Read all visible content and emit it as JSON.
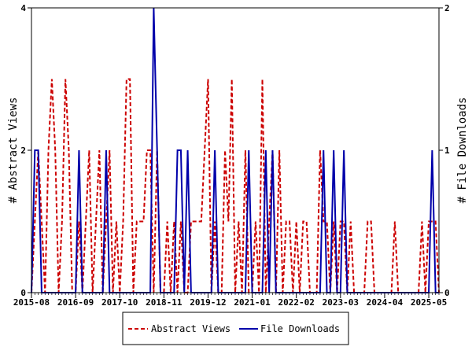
{
  "chart_data": {
    "type": "line",
    "title": "",
    "ylabel_left": "# Abstract Views",
    "ylabel_right": "# File Downloads",
    "x_tick_labels": [
      "2015-08",
      "2016-09",
      "2017-10",
      "2018-11",
      "2019-12",
      "2021-01",
      "2022-02",
      "2023-03",
      "2024-04",
      "2025-05"
    ],
    "x_range": [
      "2015-08",
      "2025-08"
    ],
    "ylim_left": [
      0,
      4
    ],
    "ylim_right": [
      0,
      2
    ],
    "y_ticks_left": [
      "0",
      "2",
      "4"
    ],
    "y_ticks_right": [
      "0",
      "1",
      "2"
    ],
    "grid": false,
    "legend_position": "bottom-center",
    "series": [
      {
        "name": "Abstract Views",
        "axis": "left",
        "color": "#cc0000",
        "style": "dashed",
        "points": [
          [
            "2015-08",
            0
          ],
          [
            "2015-09",
            1
          ],
          [
            "2015-10",
            2
          ],
          [
            "2015-11",
            1
          ],
          [
            "2015-12",
            0
          ],
          [
            "2016-01",
            2
          ],
          [
            "2016-02",
            3
          ],
          [
            "2016-03",
            2
          ],
          [
            "2016-04",
            0
          ],
          [
            "2016-05",
            1
          ],
          [
            "2016-06",
            3
          ],
          [
            "2016-07",
            2
          ],
          [
            "2016-08",
            0
          ],
          [
            "2016-09",
            0
          ],
          [
            "2016-10",
            1
          ],
          [
            "2016-11",
            0
          ],
          [
            "2016-12",
            1
          ],
          [
            "2017-01",
            2
          ],
          [
            "2017-02",
            0
          ],
          [
            "2017-03",
            1
          ],
          [
            "2017-04",
            2
          ],
          [
            "2017-05",
            0
          ],
          [
            "2017-06",
            1
          ],
          [
            "2017-07",
            2
          ],
          [
            "2017-08",
            0
          ],
          [
            "2017-09",
            1
          ],
          [
            "2017-10",
            0
          ],
          [
            "2017-11",
            1
          ],
          [
            "2017-12",
            3
          ],
          [
            "2018-01",
            3
          ],
          [
            "2018-02",
            0
          ],
          [
            "2018-03",
            1
          ],
          [
            "2018-04",
            1
          ],
          [
            "2018-05",
            1
          ],
          [
            "2018-06",
            2
          ],
          [
            "2018-07",
            2
          ],
          [
            "2018-08",
            0
          ],
          [
            "2018-09",
            2
          ],
          [
            "2018-10",
            0
          ],
          [
            "2018-11",
            0
          ],
          [
            "2018-12",
            1
          ],
          [
            "2019-01",
            0
          ],
          [
            "2019-02",
            1
          ],
          [
            "2019-03",
            0
          ],
          [
            "2019-04",
            1
          ],
          [
            "2019-05",
            0
          ],
          [
            "2019-06",
            0
          ],
          [
            "2019-07",
            1
          ],
          [
            "2019-08",
            1
          ],
          [
            "2019-09",
            1
          ],
          [
            "2019-10",
            1
          ],
          [
            "2019-11",
            2
          ],
          [
            "2019-12",
            3
          ],
          [
            "2020-01",
            0
          ],
          [
            "2020-02",
            1
          ],
          [
            "2020-03",
            0
          ],
          [
            "2020-04",
            0
          ],
          [
            "2020-05",
            2
          ],
          [
            "2020-06",
            1
          ],
          [
            "2020-07",
            3
          ],
          [
            "2020-08",
            0
          ],
          [
            "2020-09",
            1
          ],
          [
            "2020-10",
            0
          ],
          [
            "2020-11",
            2
          ],
          [
            "2020-12",
            0
          ],
          [
            "2021-01",
            0
          ],
          [
            "2021-02",
            1
          ],
          [
            "2021-03",
            0
          ],
          [
            "2021-04",
            3
          ],
          [
            "2021-05",
            0
          ],
          [
            "2021-06",
            1
          ],
          [
            "2021-07",
            2
          ],
          [
            "2021-08",
            0
          ],
          [
            "2021-09",
            2
          ],
          [
            "2021-10",
            0
          ],
          [
            "2021-11",
            1
          ],
          [
            "2021-12",
            1
          ],
          [
            "2022-01",
            0
          ],
          [
            "2022-02",
            1
          ],
          [
            "2022-03",
            0
          ],
          [
            "2022-04",
            1
          ],
          [
            "2022-05",
            1
          ],
          [
            "2022-06",
            0
          ],
          [
            "2022-07",
            0
          ],
          [
            "2022-08",
            0
          ],
          [
            "2022-09",
            2
          ],
          [
            "2022-10",
            1
          ],
          [
            "2022-11",
            1
          ],
          [
            "2022-12",
            0
          ],
          [
            "2023-01",
            1
          ],
          [
            "2023-02",
            0
          ],
          [
            "2023-03",
            1
          ],
          [
            "2023-04",
            1
          ],
          [
            "2023-05",
            0
          ],
          [
            "2023-06",
            1
          ],
          [
            "2023-07",
            0
          ],
          [
            "2023-08",
            0
          ],
          [
            "2023-09",
            0
          ],
          [
            "2023-10",
            0
          ],
          [
            "2023-11",
            1
          ],
          [
            "2023-12",
            1
          ],
          [
            "2024-01",
            0
          ],
          [
            "2024-02",
            0
          ],
          [
            "2024-03",
            0
          ],
          [
            "2024-04",
            0
          ],
          [
            "2024-05",
            0
          ],
          [
            "2024-06",
            0
          ],
          [
            "2024-07",
            1
          ],
          [
            "2024-08",
            0
          ],
          [
            "2024-09",
            0
          ],
          [
            "2024-10",
            0
          ],
          [
            "2024-11",
            0
          ],
          [
            "2024-12",
            0
          ],
          [
            "2025-01",
            0
          ],
          [
            "2025-02",
            0
          ],
          [
            "2025-03",
            1
          ],
          [
            "2025-04",
            0
          ],
          [
            "2025-05",
            1
          ],
          [
            "2025-06",
            1
          ],
          [
            "2025-07",
            1
          ],
          [
            "2025-08",
            0
          ]
        ]
      },
      {
        "name": "File Downloads",
        "axis": "right",
        "color": "#0000aa",
        "style": "solid",
        "points": [
          [
            "2015-08",
            0
          ],
          [
            "2015-09",
            1
          ],
          [
            "2015-10",
            1
          ],
          [
            "2015-11",
            0
          ],
          [
            "2015-12",
            0
          ],
          [
            "2016-01",
            0
          ],
          [
            "2016-02",
            0
          ],
          [
            "2016-03",
            0
          ],
          [
            "2016-04",
            0
          ],
          [
            "2016-05",
            0
          ],
          [
            "2016-06",
            0
          ],
          [
            "2016-07",
            0
          ],
          [
            "2016-08",
            0
          ],
          [
            "2016-09",
            0
          ],
          [
            "2016-10",
            1
          ],
          [
            "2016-11",
            0
          ],
          [
            "2016-12",
            0
          ],
          [
            "2017-01",
            0
          ],
          [
            "2017-02",
            0
          ],
          [
            "2017-03",
            0
          ],
          [
            "2017-04",
            0
          ],
          [
            "2017-05",
            0
          ],
          [
            "2017-06",
            1
          ],
          [
            "2017-07",
            0
          ],
          [
            "2017-08",
            0
          ],
          [
            "2017-09",
            0
          ],
          [
            "2017-10",
            0
          ],
          [
            "2017-11",
            0
          ],
          [
            "2017-12",
            0
          ],
          [
            "2018-01",
            0
          ],
          [
            "2018-02",
            0
          ],
          [
            "2018-03",
            0
          ],
          [
            "2018-04",
            0
          ],
          [
            "2018-05",
            0
          ],
          [
            "2018-06",
            0
          ],
          [
            "2018-07",
            0
          ],
          [
            "2018-08",
            2
          ],
          [
            "2018-09",
            1
          ],
          [
            "2018-10",
            0
          ],
          [
            "2018-11",
            0
          ],
          [
            "2018-12",
            0
          ],
          [
            "2019-01",
            0
          ],
          [
            "2019-02",
            0
          ],
          [
            "2019-03",
            1
          ],
          [
            "2019-04",
            1
          ],
          [
            "2019-05",
            0
          ],
          [
            "2019-06",
            1
          ],
          [
            "2019-07",
            0
          ],
          [
            "2019-08",
            0
          ],
          [
            "2019-09",
            0
          ],
          [
            "2019-10",
            0
          ],
          [
            "2019-11",
            0
          ],
          [
            "2019-12",
            0
          ],
          [
            "2020-01",
            0
          ],
          [
            "2020-02",
            1
          ],
          [
            "2020-03",
            0
          ],
          [
            "2020-04",
            0
          ],
          [
            "2020-05",
            0
          ],
          [
            "2020-06",
            0
          ],
          [
            "2020-07",
            0
          ],
          [
            "2020-08",
            0
          ],
          [
            "2020-09",
            0
          ],
          [
            "2020-10",
            0
          ],
          [
            "2020-11",
            0
          ],
          [
            "2020-12",
            1
          ],
          [
            "2021-01",
            0
          ],
          [
            "2021-02",
            0
          ],
          [
            "2021-03",
            0
          ],
          [
            "2021-04",
            0
          ],
          [
            "2021-05",
            1
          ],
          [
            "2021-06",
            0
          ],
          [
            "2021-07",
            1
          ],
          [
            "2021-08",
            0
          ],
          [
            "2021-09",
            0
          ],
          [
            "2021-10",
            0
          ],
          [
            "2021-11",
            0
          ],
          [
            "2021-12",
            0
          ],
          [
            "2022-01",
            0
          ],
          [
            "2022-02",
            0
          ],
          [
            "2022-03",
            0
          ],
          [
            "2022-04",
            0
          ],
          [
            "2022-05",
            0
          ],
          [
            "2022-06",
            0
          ],
          [
            "2022-07",
            0
          ],
          [
            "2022-08",
            0
          ],
          [
            "2022-09",
            0
          ],
          [
            "2022-10",
            1
          ],
          [
            "2022-11",
            0
          ],
          [
            "2022-12",
            0
          ],
          [
            "2023-01",
            1
          ],
          [
            "2023-02",
            0
          ],
          [
            "2023-03",
            0
          ],
          [
            "2023-04",
            1
          ],
          [
            "2023-05",
            0
          ],
          [
            "2023-06",
            0
          ],
          [
            "2023-07",
            0
          ],
          [
            "2023-08",
            0
          ],
          [
            "2023-09",
            0
          ],
          [
            "2023-10",
            0
          ],
          [
            "2023-11",
            0
          ],
          [
            "2023-12",
            0
          ],
          [
            "2024-01",
            0
          ],
          [
            "2024-02",
            0
          ],
          [
            "2024-03",
            0
          ],
          [
            "2024-04",
            0
          ],
          [
            "2024-05",
            0
          ],
          [
            "2024-06",
            0
          ],
          [
            "2024-07",
            0
          ],
          [
            "2024-08",
            0
          ],
          [
            "2024-09",
            0
          ],
          [
            "2024-10",
            0
          ],
          [
            "2024-11",
            0
          ],
          [
            "2024-12",
            0
          ],
          [
            "2025-01",
            0
          ],
          [
            "2025-02",
            0
          ],
          [
            "2025-03",
            0
          ],
          [
            "2025-04",
            0
          ],
          [
            "2025-05",
            0
          ],
          [
            "2025-06",
            1
          ],
          [
            "2025-07",
            0
          ],
          [
            "2025-08",
            0
          ]
        ]
      }
    ]
  }
}
